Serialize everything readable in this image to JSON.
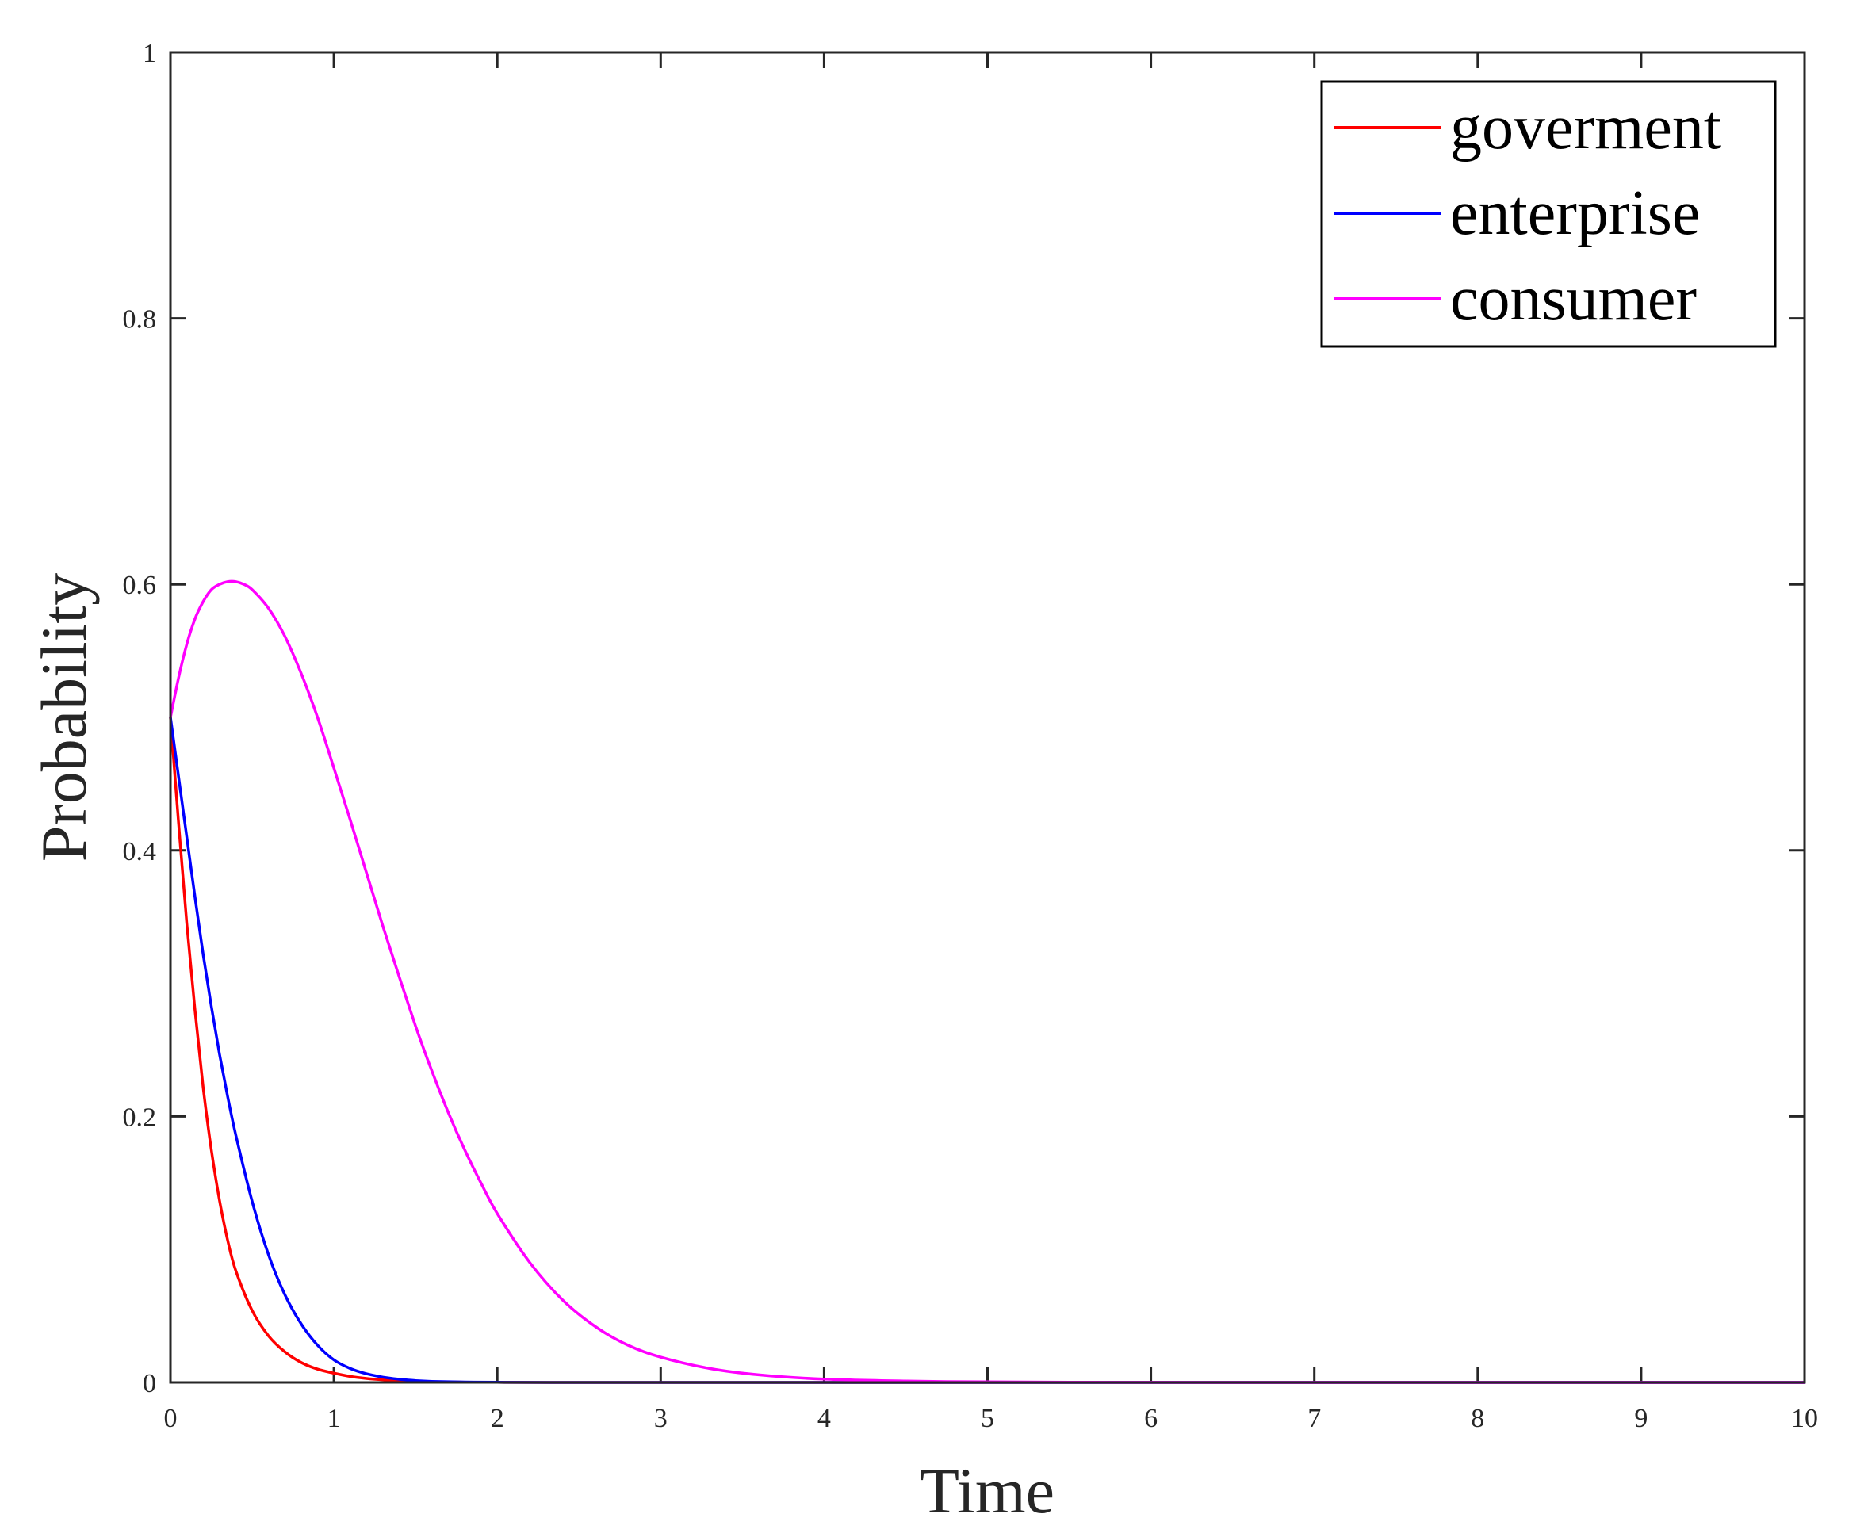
{
  "chart_data": {
    "type": "line",
    "title": "",
    "xlabel": "Time",
    "ylabel": "Probability",
    "xlim": [
      0,
      10
    ],
    "ylim": [
      0,
      1
    ],
    "xticks": [
      "0",
      "1",
      "2",
      "3",
      "4",
      "5",
      "6",
      "7",
      "8",
      "9",
      "10"
    ],
    "yticks": [
      "0",
      "0.2",
      "0.4",
      "0.6",
      "0.8",
      "1"
    ],
    "grid": false,
    "legend_position": "top-right",
    "series": [
      {
        "name": "goverment",
        "color": "#ff0000",
        "x": [
          0,
          0.05,
          0.1,
          0.15,
          0.2,
          0.25,
          0.3,
          0.35,
          0.4,
          0.5,
          0.6,
          0.7,
          0.8,
          0.9,
          1.0,
          1.1,
          1.2,
          1.3,
          1.4,
          1.5,
          1.6,
          1.8,
          2.0,
          2.5,
          3,
          4,
          5,
          6,
          7,
          8,
          9,
          10
        ],
        "y": [
          0.5,
          0.42,
          0.345,
          0.28,
          0.222,
          0.175,
          0.137,
          0.107,
          0.084,
          0.054,
          0.035,
          0.023,
          0.015,
          0.01,
          0.007,
          0.0045,
          0.003,
          0.002,
          0.0013,
          0.0008,
          0.0005,
          0.0002,
          0.0001,
          0,
          0,
          0,
          0,
          0,
          0,
          0,
          0,
          0
        ]
      },
      {
        "name": "enterprise",
        "color": "#0000ff",
        "x": [
          0,
          0.05,
          0.1,
          0.15,
          0.2,
          0.25,
          0.3,
          0.35,
          0.4,
          0.5,
          0.6,
          0.7,
          0.8,
          0.9,
          1.0,
          1.1,
          1.2,
          1.3,
          1.4,
          1.5,
          1.6,
          1.8,
          2.0,
          2.5,
          3,
          4,
          5,
          6,
          7,
          8,
          9,
          10
        ],
        "y": [
          0.5,
          0.455,
          0.41,
          0.365,
          0.322,
          0.283,
          0.247,
          0.215,
          0.186,
          0.136,
          0.096,
          0.066,
          0.044,
          0.028,
          0.017,
          0.0105,
          0.0065,
          0.004,
          0.0024,
          0.0014,
          0.0008,
          0.0003,
          0.0001,
          0,
          0,
          0,
          0,
          0,
          0,
          0,
          0,
          0
        ]
      },
      {
        "name": "consumer",
        "color": "#ff00ff",
        "x": [
          0,
          0.05,
          0.1,
          0.15,
          0.2,
          0.25,
          0.3,
          0.35,
          0.4,
          0.45,
          0.5,
          0.6,
          0.7,
          0.8,
          0.9,
          1.0,
          1.1,
          1.2,
          1.3,
          1.4,
          1.5,
          1.6,
          1.7,
          1.8,
          1.9,
          2.0,
          2.2,
          2.4,
          2.6,
          2.8,
          3.0,
          3.3,
          3.6,
          4.0,
          4.5,
          5.0,
          5.5,
          6,
          7,
          8,
          9,
          10
        ],
        "y": [
          0.5,
          0.53,
          0.555,
          0.574,
          0.587,
          0.596,
          0.6,
          0.602,
          0.602,
          0.6,
          0.596,
          0.582,
          0.561,
          0.533,
          0.5,
          0.462,
          0.423,
          0.383,
          0.343,
          0.305,
          0.268,
          0.234,
          0.203,
          0.175,
          0.15,
          0.127,
          0.09,
          0.062,
          0.042,
          0.028,
          0.019,
          0.0105,
          0.0057,
          0.0025,
          0.001,
          0.0004,
          0.00015,
          5e-05,
          0,
          0,
          0,
          0
        ]
      }
    ]
  }
}
